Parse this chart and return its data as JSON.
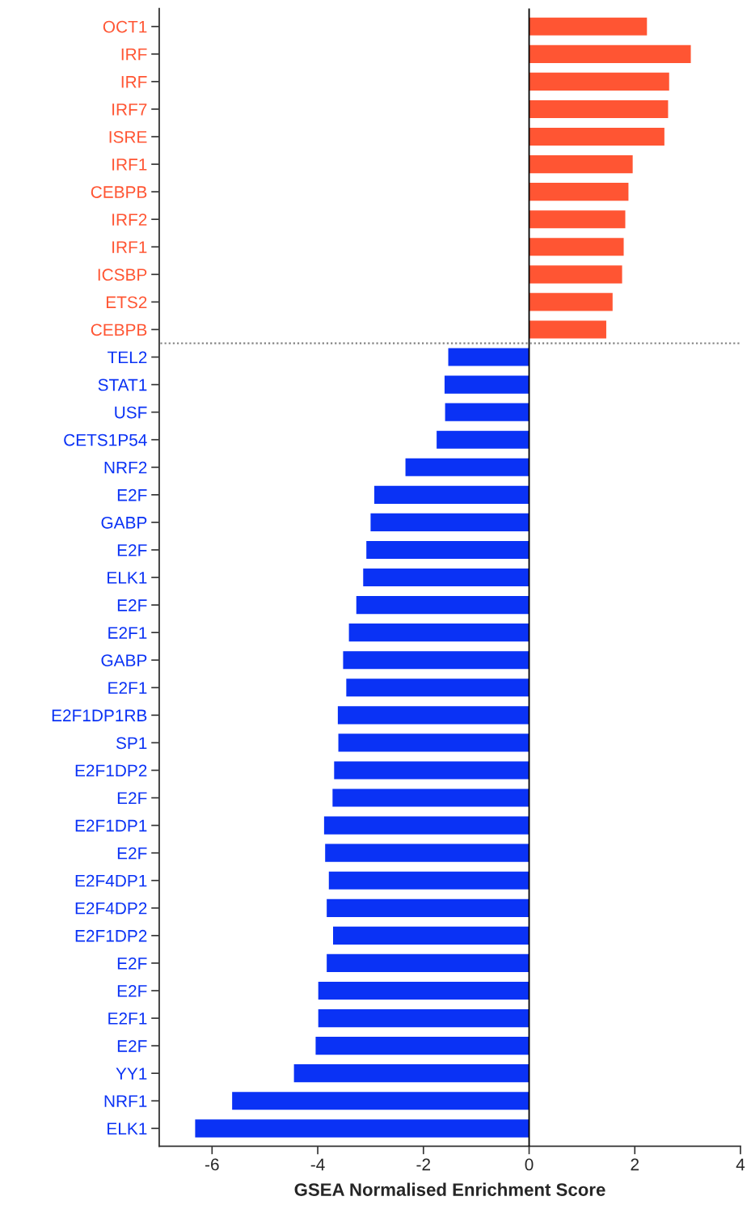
{
  "chart_data": {
    "type": "bar",
    "orientation": "horizontal",
    "xlabel": "GSEA Normalised Enrichment Score",
    "categories": [
      "OCT1",
      "IRF",
      "IRF",
      "IRF7",
      "ISRE",
      "IRF1",
      "CEBPB",
      "IRF2",
      "IRF1",
      "ICSBP",
      "ETS2",
      "CEBPB",
      "TEL2",
      "STAT1",
      "USF",
      "CETS1P54",
      "NRF2",
      "E2F",
      "GABP",
      "E2F",
      "ELK1",
      "E2F",
      "E2F1",
      "GABP",
      "E2F1",
      "E2F1DP1RB",
      "SP1",
      "E2F1DP2",
      "E2F",
      "E2F1DP1",
      "E2F",
      "E2F4DP1",
      "E2F4DP2",
      "E2F1DP2",
      "E2F",
      "E2F",
      "E2F1",
      "E2F",
      "YY1",
      "NRF1",
      "ELK1"
    ],
    "values": [
      2.23,
      3.06,
      2.65,
      2.63,
      2.56,
      1.96,
      1.88,
      1.82,
      1.79,
      1.76,
      1.58,
      1.46,
      -1.53,
      -1.6,
      -1.59,
      -1.75,
      -2.34,
      -2.93,
      -3.0,
      -3.08,
      -3.14,
      -3.27,
      -3.41,
      -3.52,
      -3.46,
      -3.62,
      -3.61,
      -3.69,
      -3.72,
      -3.88,
      -3.86,
      -3.79,
      -3.83,
      -3.71,
      -3.83,
      -3.99,
      -3.99,
      -4.04,
      -4.45,
      -5.62,
      -6.32
    ],
    "colors": [
      "#ff5533",
      "#ff5533",
      "#ff5533",
      "#ff5533",
      "#ff5533",
      "#ff5533",
      "#ff5533",
      "#ff5533",
      "#ff5533",
      "#ff5533",
      "#ff5533",
      "#ff5533",
      "#0a32f5",
      "#0a32f5",
      "#0a32f5",
      "#0a32f5",
      "#0a32f5",
      "#0a32f5",
      "#0a32f5",
      "#0a32f5",
      "#0a32f5",
      "#0a32f5",
      "#0a32f5",
      "#0a32f5",
      "#0a32f5",
      "#0a32f5",
      "#0a32f5",
      "#0a32f5",
      "#0a32f5",
      "#0a32f5",
      "#0a32f5",
      "#0a32f5",
      "#0a32f5",
      "#0a32f5",
      "#0a32f5",
      "#0a32f5",
      "#0a32f5",
      "#0a32f5",
      "#0a32f5",
      "#0a32f5",
      "#0a32f5"
    ],
    "xlim": [
      -7,
      4
    ],
    "xticks": [
      -6,
      -4,
      -2,
      0,
      2,
      4
    ],
    "grid": false,
    "legend": false,
    "ref_lines": [
      {
        "axis": "x",
        "value": 0,
        "color": "#000000",
        "line_style": "solid"
      }
    ]
  }
}
